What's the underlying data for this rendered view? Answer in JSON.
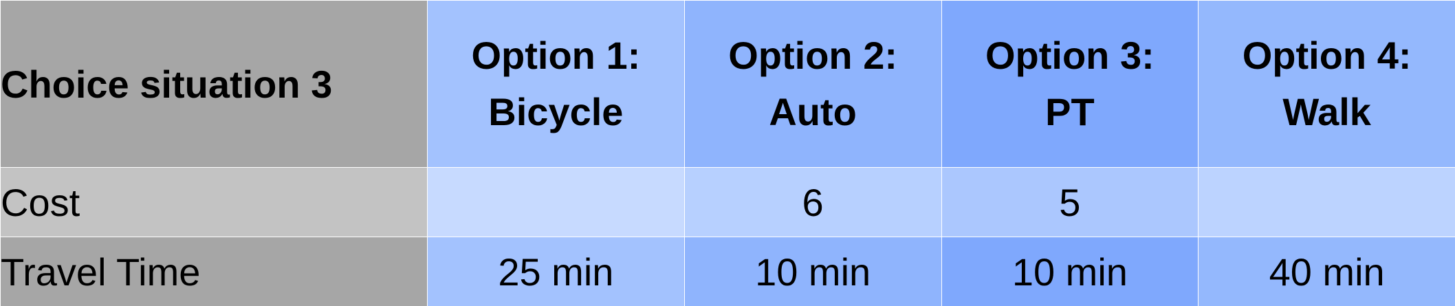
{
  "table": {
    "corner_label": "Choice situation 3",
    "options": [
      {
        "line1": "Option 1:",
        "line2": "Bicycle"
      },
      {
        "line1": "Option 2:",
        "line2": "Auto"
      },
      {
        "line1": "Option 3:",
        "line2": "PT"
      },
      {
        "line1": "Option 4:",
        "line2": "Walk"
      }
    ],
    "rows": [
      {
        "label": "Cost",
        "values": [
          "",
          "6",
          "5",
          ""
        ]
      },
      {
        "label": "Travel Time",
        "values": [
          "25 min",
          "10 min",
          "10 min",
          "40 min"
        ]
      }
    ]
  },
  "colors": {
    "label_header_bg": "#a6a6a6",
    "label_cost_bg": "#c3c3c3",
    "option1_bg": "#a3c2fe",
    "option2_bg": "#8fb4fd",
    "option3_bg": "#7fa8fd",
    "option4_bg": "#94b8fd"
  }
}
